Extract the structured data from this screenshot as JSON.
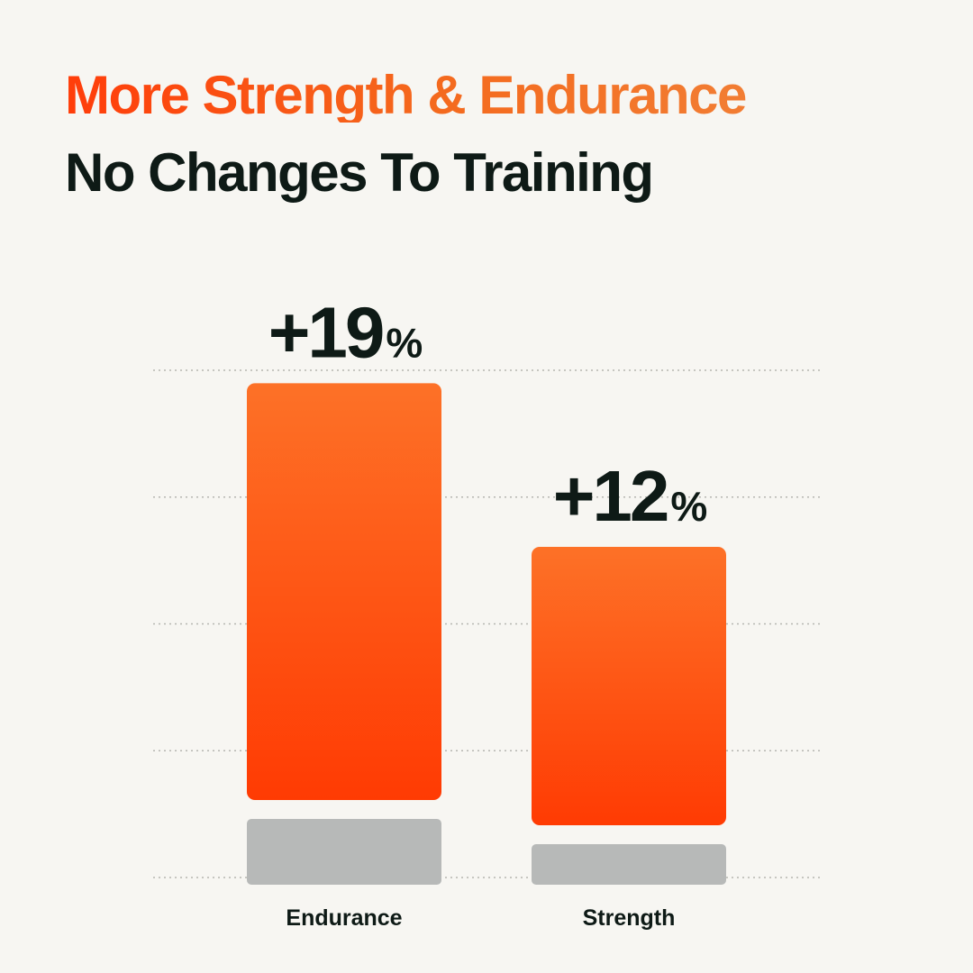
{
  "headline": {
    "line1": "More Strength & Endurance",
    "line2": "No Changes To Training"
  },
  "colors": {
    "background": "#f7f6f2",
    "accent_top": "#fd7127",
    "accent_bottom": "#ff3b03",
    "accent_title": "#f46a1e",
    "baseline_bar": "#b7b9b8",
    "text_dark": "#0e1a16",
    "gridline": "#b5b5b0"
  },
  "chart_data": {
    "type": "bar",
    "title": "",
    "xlabel": "",
    "ylabel": "",
    "categories": [
      "Endurance",
      "Strength"
    ],
    "series": [
      {
        "values": [
          19,
          12
        ]
      }
    ],
    "value_labels": [
      {
        "number": "+19",
        "unit": "%"
      },
      {
        "number": "+12",
        "unit": "%"
      }
    ],
    "ylim": [
      0,
      20
    ],
    "grid": true,
    "legend": "none"
  }
}
